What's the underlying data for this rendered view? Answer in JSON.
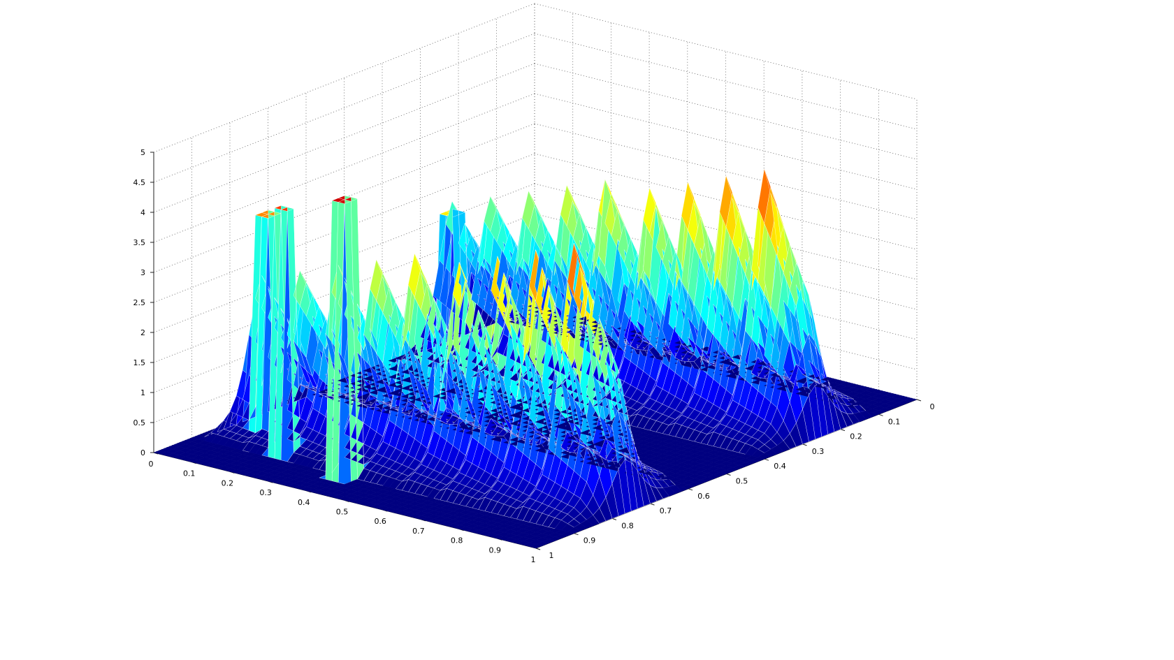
{
  "figure": {
    "background": "#ffffff",
    "colormap": "jet",
    "edge_color": "#ffffff"
  },
  "chart_data": {
    "type": "surface",
    "title": "",
    "xlabel": "",
    "ylabel": "",
    "zlabel": "",
    "grid": true,
    "view": "3d-perspective",
    "xlim": [
      0,
      1
    ],
    "ylim": [
      0,
      1
    ],
    "zlim": [
      0,
      5
    ],
    "x_ticks": [
      0,
      0.1,
      0.2,
      0.3,
      0.4,
      0.5,
      0.6,
      0.7,
      0.8,
      0.9,
      1
    ],
    "y_ticks": [
      0,
      0.1,
      0.2,
      0.3,
      0.4,
      0.5,
      0.6,
      0.7,
      0.8,
      0.9,
      1
    ],
    "z_ticks": [
      0,
      0.5,
      1,
      1.5,
      2,
      2.5,
      3,
      3.5,
      4,
      4.5,
      5
    ],
    "x_tick_labels": [
      "0",
      "0.1",
      "0.2",
      "0.3",
      "0.4",
      "0.5",
      "0.6",
      "0.7",
      "0.8",
      "0.9",
      "1"
    ],
    "y_tick_labels": [
      "0",
      "0.1",
      "0.2",
      "0.3",
      "0.4",
      "0.5",
      "0.6",
      "0.7",
      "0.8",
      "0.9",
      "1"
    ],
    "z_tick_labels": [
      "0",
      "0.5",
      "1",
      "1.5",
      "2",
      "2.5",
      "3",
      "3.5",
      "4",
      "4.5",
      "5"
    ],
    "ridges": [
      {
        "y_center": 0.25,
        "x_start": 0.02,
        "x_end": 0.95,
        "z_start": 2.5,
        "z_end": 4.5,
        "width": 0.3
      },
      {
        "y_center": 0.75,
        "x_start": 0.02,
        "x_end": 0.95,
        "z_start": 2.5,
        "z_end": 4.5,
        "width": 0.3
      }
    ],
    "step_count": 9,
    "spikes": [
      {
        "x": 0.12,
        "y": 0.82,
        "z": 3.7
      },
      {
        "x": 0.22,
        "y": 0.88,
        "z": 4.1
      },
      {
        "x": 0.4,
        "y": 0.9,
        "z": 4.6
      },
      {
        "x": 0.28,
        "y": 0.5,
        "z": 3.2
      }
    ]
  }
}
